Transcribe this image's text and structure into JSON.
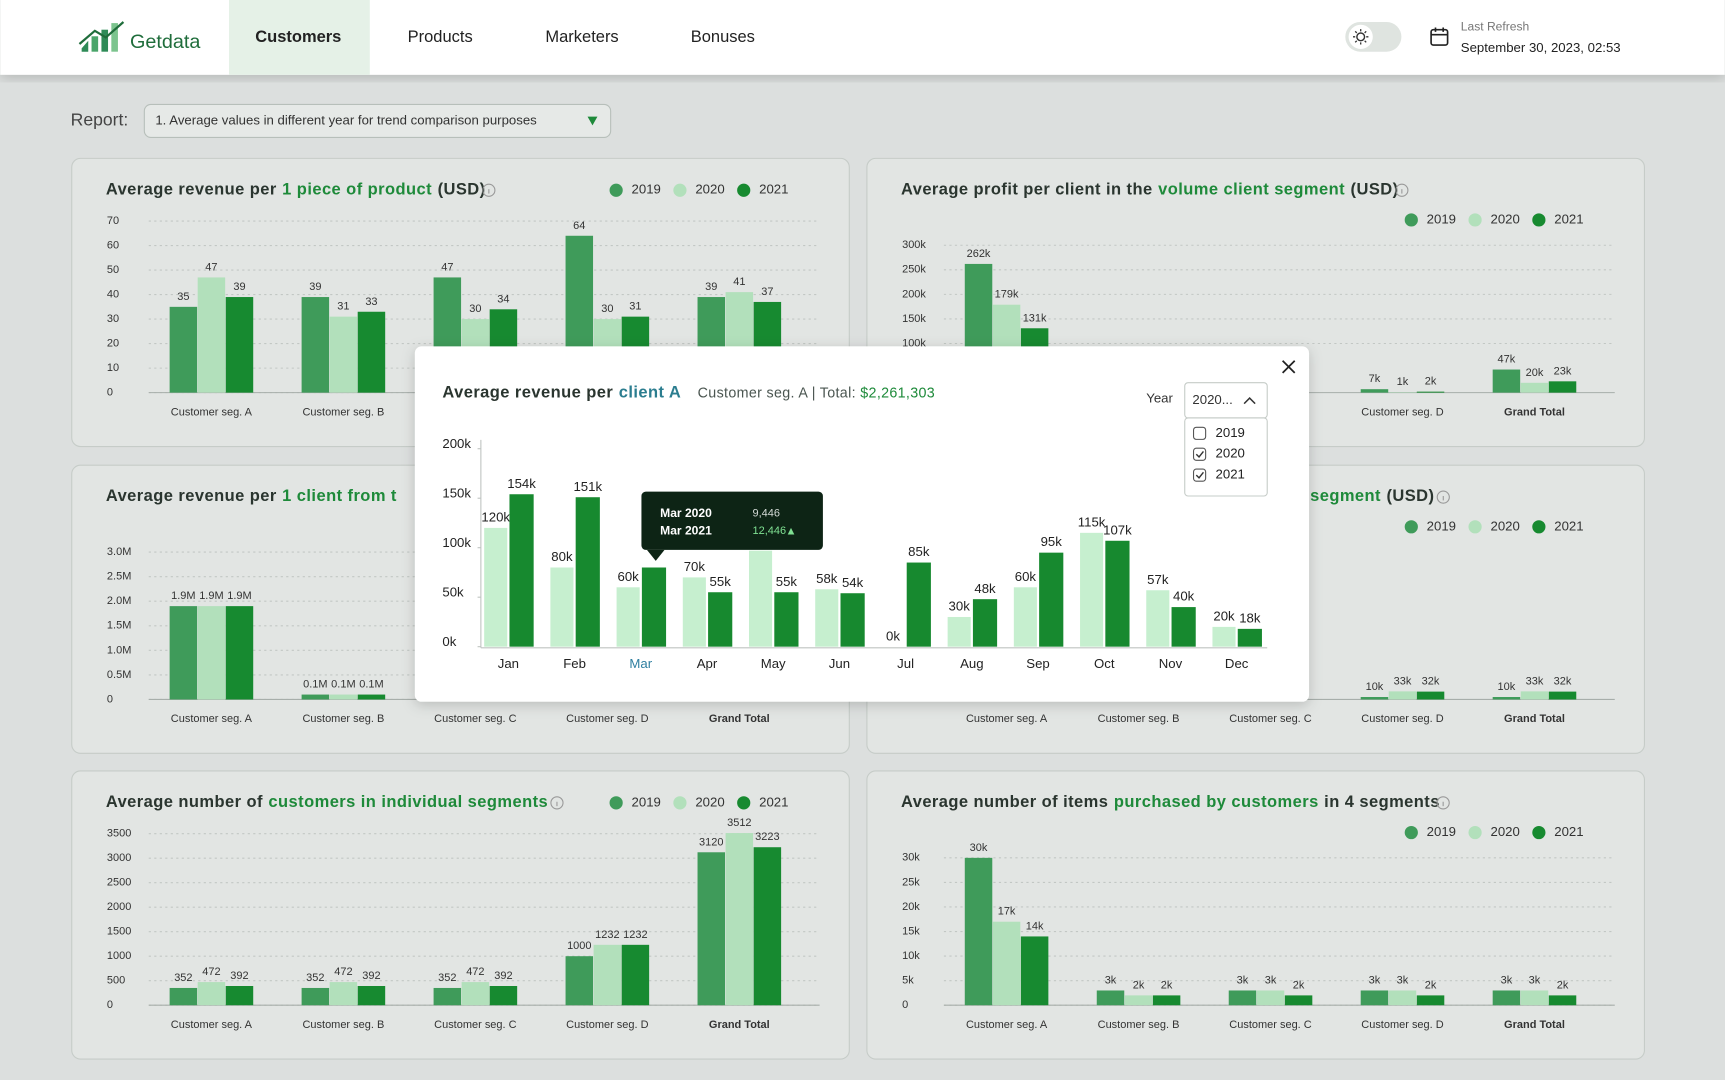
{
  "header": {
    "logo": "Getdata",
    "tabs": [
      "Customers",
      "Products",
      "Marketers",
      "Bonuses"
    ],
    "active_tab": 0,
    "last_refresh_label": "Last Refresh",
    "last_refresh": "September 30, 2023, 02:53"
  },
  "report": {
    "label": "Report:",
    "selected": "1. Average values in different year for trend comparison purposes"
  },
  "chart_data": [
    {
      "type": "bar",
      "title": [
        {
          "text": "Average revenue per"
        },
        {
          "text": "1 piece of product",
          "highlight": true
        },
        {
          "text": "(USD)"
        }
      ],
      "categories": [
        "Customer seg. A",
        "Customer seg. B",
        null,
        null,
        null
      ],
      "series": [
        {
          "name": "2019",
          "color": "#3f9b5a",
          "values": [
            35,
            39,
            47,
            64,
            39
          ]
        },
        {
          "name": "2020",
          "color": "#b2e0bb",
          "values": [
            47,
            31,
            30,
            30,
            41
          ]
        },
        {
          "name": "2021",
          "color": "#178a30",
          "values": [
            39,
            33,
            34,
            31,
            37
          ]
        }
      ],
      "ylim": [
        0,
        70
      ],
      "yticks": [
        0,
        10,
        20,
        30,
        40,
        50,
        60,
        70
      ],
      "grid": true
    },
    {
      "type": "bar",
      "title": [
        {
          "text": "Average profit per client in the"
        },
        {
          "text": "volume client segment",
          "highlight": true
        },
        {
          "text": "(USD)"
        }
      ],
      "categories": [
        null,
        null,
        null,
        "Customer seg. D",
        "Grand Total"
      ],
      "series": [
        {
          "name": "2019",
          "color": "#3f9b5a",
          "values": [
            262000,
            null,
            null,
            7000,
            47000
          ],
          "value_labels": [
            "262k",
            null,
            null,
            "7k",
            "47k"
          ]
        },
        {
          "name": "2020",
          "color": "#b2e0bb",
          "values": [
            179000,
            null,
            null,
            1000,
            20000
          ],
          "value_labels": [
            "179k",
            null,
            null,
            "1k",
            "20k"
          ]
        },
        {
          "name": "2021",
          "color": "#178a30",
          "values": [
            131000,
            null,
            null,
            2000,
            23000
          ],
          "value_labels": [
            "131k",
            null,
            null,
            "2k",
            "23k"
          ]
        }
      ],
      "ylim": [
        0,
        300000
      ],
      "yticks": [
        {
          "value": 100000,
          "label": "100k"
        },
        {
          "value": 150000,
          "label": "150k"
        },
        {
          "value": 200000,
          "label": "200k"
        },
        {
          "value": 250000,
          "label": "250k"
        },
        {
          "value": 300000,
          "label": "300k"
        }
      ],
      "grid": true
    },
    {
      "type": "bar",
      "title": [
        {
          "text": "Average revenue per"
        },
        {
          "text": "1 client from t",
          "highlight": true
        }
      ],
      "categories": [
        "Customer seg. A",
        "Customer seg. B",
        "Customer seg. C",
        "Customer seg. D",
        "Grand Total"
      ],
      "series": [
        {
          "name": "2019",
          "color": "#3f9b5a",
          "values": [
            1900000,
            100000,
            null,
            null,
            null
          ],
          "value_labels": [
            "1.9M",
            "0.1M",
            null,
            null,
            null
          ]
        },
        {
          "name": "2020",
          "color": "#b2e0bb",
          "values": [
            1900000,
            100000,
            null,
            null,
            null
          ],
          "value_labels": [
            "1.9M",
            "0.1M",
            null,
            null,
            null
          ]
        },
        {
          "name": "2021",
          "color": "#178a30",
          "values": [
            1900000,
            100000,
            null,
            null,
            null
          ],
          "value_labels": [
            "1.9M",
            "0.1M",
            null,
            null,
            null
          ]
        }
      ],
      "ylim": [
        0,
        3000000
      ],
      "yticks": [
        0,
        {
          "value": 500000,
          "label": "0.5M"
        },
        {
          "value": 1000000,
          "label": "1.0M"
        },
        {
          "value": 1500000,
          "label": "1.5M"
        },
        {
          "value": 2000000,
          "label": "2.0M"
        },
        {
          "value": 2500000,
          "label": "2.5M"
        },
        {
          "value": 3000000,
          "label": "3.0M"
        }
      ],
      "grid": true
    },
    {
      "type": "bar",
      "title": [
        {
          "text": "segment",
          "highlight": true
        },
        {
          "text": "(USD)"
        }
      ],
      "categories": [
        "Customer seg. A",
        "Customer seg. B",
        "Customer seg. C",
        "Customer seg. D",
        "Grand Total"
      ],
      "series": [
        {
          "name": "2019",
          "color": "#3f9b5a",
          "values": [
            null,
            null,
            null,
            10000,
            10000
          ],
          "value_labels": [
            null,
            null,
            null,
            "10k",
            "10k"
          ]
        },
        {
          "name": "2020",
          "color": "#b2e0bb",
          "values": [
            null,
            null,
            null,
            33000,
            33000
          ],
          "value_labels": [
            null,
            null,
            null,
            "33k",
            "33k"
          ]
        },
        {
          "name": "2021",
          "color": "#178a30",
          "values": [
            null,
            null,
            null,
            32000,
            32000
          ],
          "value_labels": [
            null,
            null,
            null,
            "32k",
            "32k"
          ]
        }
      ],
      "ylim": [
        0,
        600000
      ],
      "yticks": [],
      "grid": true
    },
    {
      "type": "bar",
      "title": [
        {
          "text": "Average number of"
        },
        {
          "text": "customers in individual segments",
          "highlight": true
        }
      ],
      "categories": [
        "Customer seg. A",
        "Customer seg. B",
        "Customer seg. C",
        "Customer seg. D",
        "Grand Total"
      ],
      "series": [
        {
          "name": "2019",
          "color": "#3f9b5a",
          "values": [
            352,
            352,
            352,
            1000,
            3120
          ]
        },
        {
          "name": "2020",
          "color": "#b2e0bb",
          "values": [
            472,
            472,
            472,
            1232,
            3512
          ]
        },
        {
          "name": "2021",
          "color": "#178a30",
          "values": [
            392,
            392,
            392,
            1232,
            3223
          ]
        }
      ],
      "ylim": [
        0,
        3500
      ],
      "yticks": [
        0,
        500,
        1000,
        1500,
        2000,
        2500,
        3000,
        3500
      ],
      "grid": true
    },
    {
      "type": "bar",
      "title": [
        {
          "text": "Average number of items"
        },
        {
          "text": "purchased by customers",
          "highlight": true
        },
        {
          "text": "in 4 segments"
        }
      ],
      "categories": [
        "Customer seg. A",
        "Customer seg. B",
        "Customer seg. C",
        "Customer seg. D",
        "Grand Total"
      ],
      "series": [
        {
          "name": "2019",
          "color": "#3f9b5a",
          "values": [
            30000,
            3000,
            3000,
            3000,
            3000
          ],
          "value_labels": [
            "30k",
            "3k",
            "3k",
            "3k",
            "3k"
          ]
        },
        {
          "name": "2020",
          "color": "#b2e0bb",
          "values": [
            17000,
            2000,
            3000,
            3000,
            3000
          ],
          "value_labels": [
            "17k",
            "2k",
            "3k",
            "3k",
            "3k"
          ]
        },
        {
          "name": "2021",
          "color": "#178a30",
          "values": [
            14000,
            2000,
            2000,
            2000,
            2000
          ],
          "value_labels": [
            "14k",
            "2k",
            "2k",
            "2k",
            "2k"
          ]
        }
      ],
      "ylim": [
        0,
        30000
      ],
      "yticks": [
        0,
        {
          "value": 5000,
          "label": "5k"
        },
        {
          "value": 10000,
          "label": "10k"
        },
        {
          "value": 15000,
          "label": "15k"
        },
        {
          "value": 20000,
          "label": "20k"
        },
        {
          "value": 25000,
          "label": "25k"
        },
        {
          "value": 30000,
          "label": "30k"
        }
      ],
      "grid": true
    },
    {
      "type": "bar",
      "title": [
        {
          "text": "Average revenue per"
        },
        {
          "text": "client A",
          "highlight": true
        }
      ],
      "subtitle": "Customer seg. A | Total:",
      "total": "$2,261,303",
      "categories": [
        "Jan",
        "Feb",
        "Mar",
        "Apr",
        "May",
        "Jun",
        "Jul",
        "Aug",
        "Sep",
        "Oct",
        "Nov",
        "Dec"
      ],
      "series": [
        {
          "color": "#c6efcf",
          "values": [
            120000,
            80000,
            60000,
            70000,
            97000,
            58000,
            0,
            30000,
            60000,
            115000,
            57000,
            20000
          ],
          "value_labels": [
            "120k",
            "80k",
            "60k",
            "70k",
            null,
            "58k",
            "0k",
            "30k",
            "60k",
            "115k",
            "57k",
            "20k"
          ]
        },
        {
          "color": "#17892f",
          "values": [
            154000,
            151000,
            80000,
            55000,
            55000,
            54000,
            85000,
            48000,
            95000,
            107000,
            40000,
            18000
          ],
          "value_labels": [
            "154k",
            "151k",
            null,
            "55k",
            "55k",
            "54k",
            "85k",
            "48k",
            "95k",
            "107k",
            "40k",
            "18k"
          ]
        }
      ],
      "ylim": [
        0,
        200000
      ],
      "yticks": [
        {
          "value": 0,
          "label": "0k"
        },
        {
          "value": 50000,
          "label": "50k"
        },
        {
          "value": 100000,
          "label": "100k"
        },
        {
          "value": 150000,
          "label": "150k"
        },
        {
          "value": 200000,
          "label": "200k"
        }
      ],
      "grid": false,
      "year_filter": {
        "label": "Year",
        "selected": "2020...",
        "options": [
          {
            "label": "2019",
            "checked": false
          },
          {
            "label": "2020",
            "checked": true
          },
          {
            "label": "2021",
            "checked": true
          }
        ]
      },
      "tooltip": {
        "rows": [
          {
            "label": "Mar 2020",
            "value": "9,446"
          },
          {
            "label": "Mar 2021",
            "value": "12,446"
          }
        ]
      }
    }
  ]
}
